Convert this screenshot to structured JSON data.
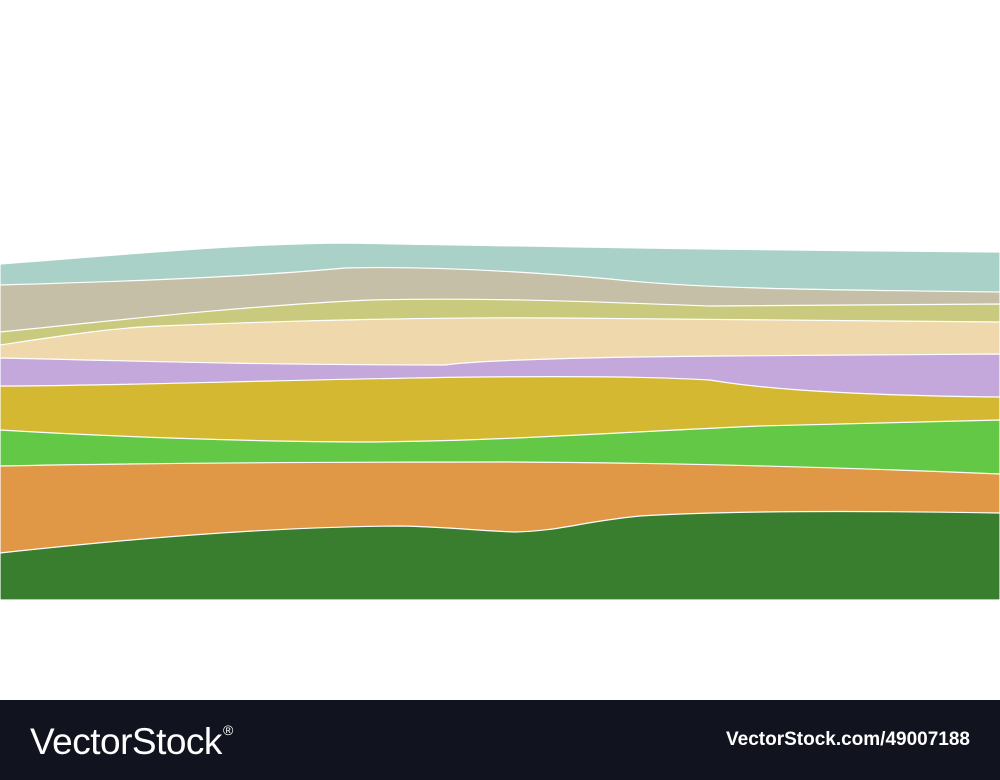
{
  "illustration": {
    "subject": "layered-hills",
    "bands": [
      {
        "name": "teal",
        "color": "#a9d1c7"
      },
      {
        "name": "taupe",
        "color": "#c4bfa6"
      },
      {
        "name": "olive-light",
        "color": "#c9ca7d"
      },
      {
        "name": "cream",
        "color": "#efd9ac"
      },
      {
        "name": "lavender",
        "color": "#c4a8dc"
      },
      {
        "name": "mustard",
        "color": "#d5b832"
      },
      {
        "name": "lime-green",
        "color": "#63c846"
      },
      {
        "name": "orange",
        "color": "#e09746"
      },
      {
        "name": "dark-green",
        "color": "#397d2f"
      }
    ],
    "stroke_color": "#ffffff"
  },
  "watermark": {
    "brand": "VectorStock",
    "registered_mark": "®",
    "asset_id": "VectorStock.com/49007188",
    "background_color": "#11131f",
    "text_color": "#ffffff"
  }
}
